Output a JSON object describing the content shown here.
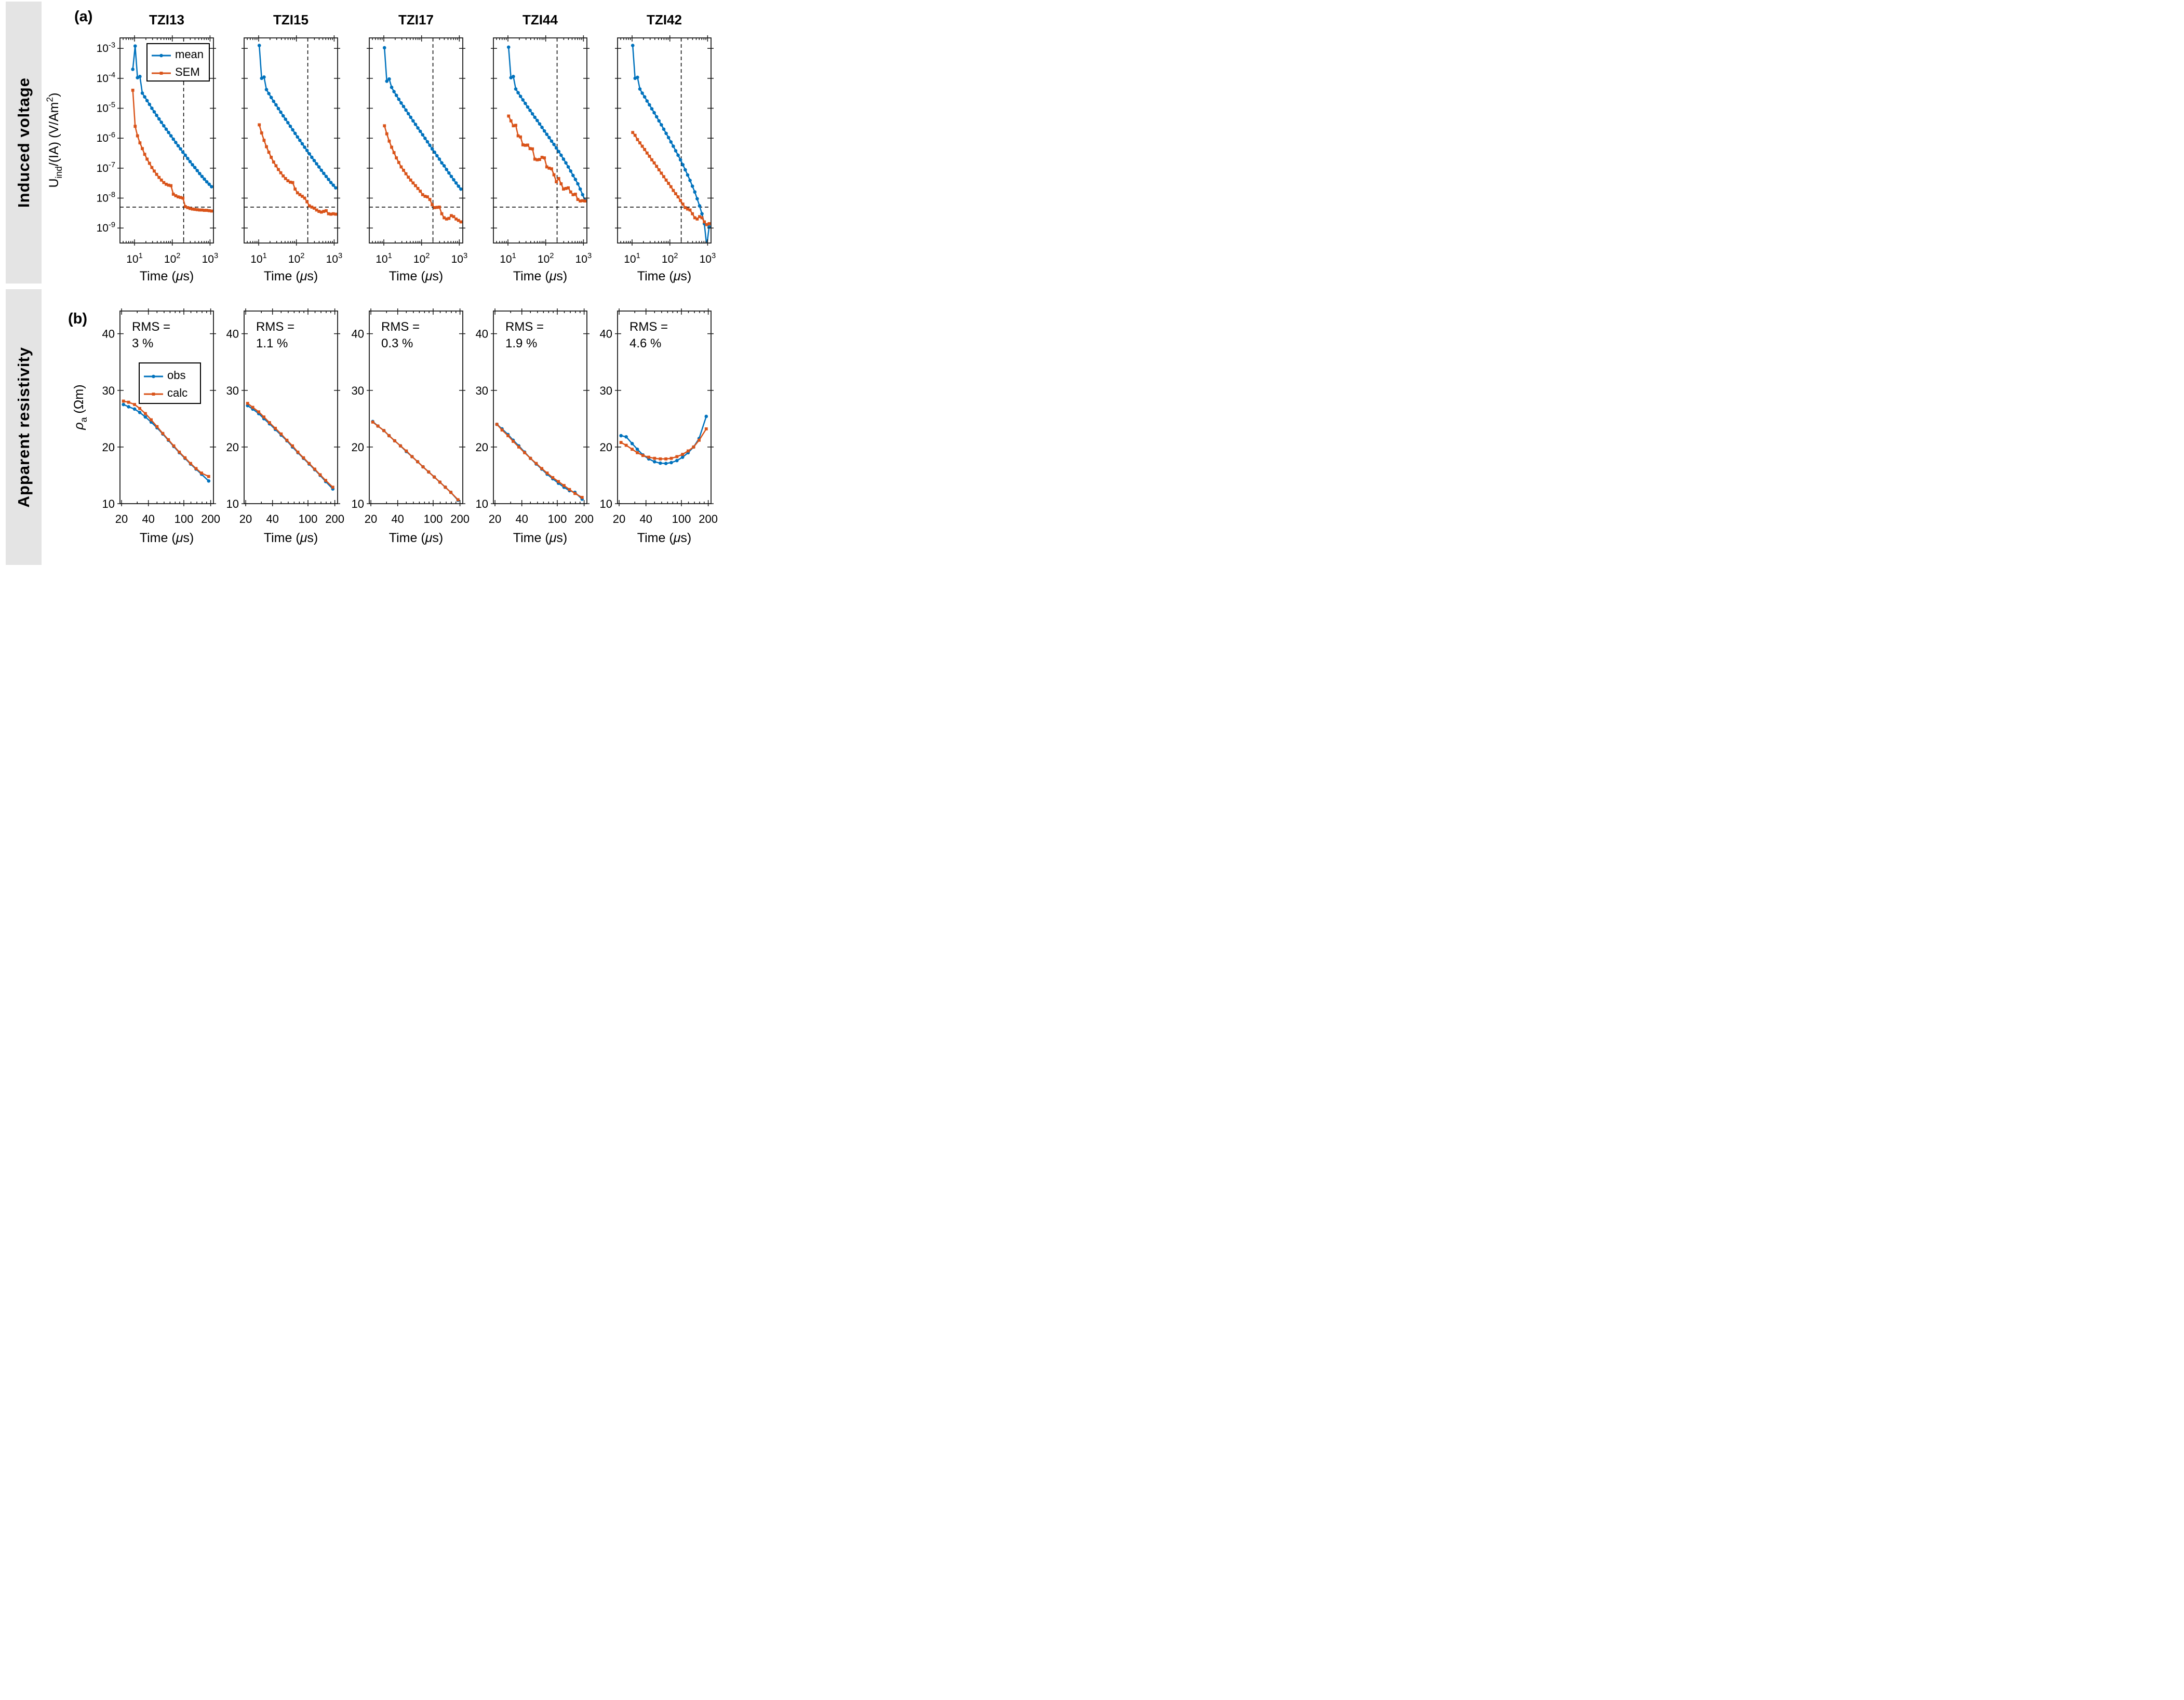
{
  "sidebars": {
    "a": "Induced voltage",
    "b": "Apparent resistivity"
  },
  "panel_labels": {
    "a": "(a)",
    "b": "(b)"
  },
  "colors": {
    "blue": "#0072BD",
    "orange": "#D95319",
    "axis": "#1a1a1a",
    "guide": "#000000",
    "sidebar_bg": "#E4E4E4"
  },
  "chart_data": [
    {
      "id": "induced-voltage",
      "type": "line",
      "x_scale": "log",
      "y_scale": "log",
      "xlabel": "Time (μs)",
      "xlabel_parts": [
        [
          "Time (",
          "n"
        ],
        [
          "μ",
          "i"
        ],
        [
          "s)",
          "n"
        ]
      ],
      "ylabel": "U_ind/(IA) (V/Am^2)",
      "ylabel_parts": [
        [
          "U",
          "n"
        ],
        [
          "ind",
          "s"
        ],
        [
          "/(IA) (V/Am",
          "n"
        ],
        [
          "2",
          "u"
        ],
        [
          ")",
          "n"
        ]
      ],
      "xlim": [
        4.1,
        1230
      ],
      "ylim": [
        3.2e-10,
        0.0022
      ],
      "x_major_ticks": [
        10,
        100,
        1000
      ],
      "y_major_tick_exponents": [
        -3,
        -4,
        -5,
        -6,
        -7,
        -8,
        -9
      ],
      "x_minor_ticks": [
        5,
        6,
        7,
        8,
        9,
        20,
        30,
        40,
        50,
        60,
        70,
        80,
        90,
        200,
        300,
        400,
        500,
        600,
        700,
        800,
        900
      ],
      "dashed_guides": {
        "x": 200,
        "y": 5e-09
      },
      "legend": {
        "items": [
          {
            "label": "mean",
            "color": "#0072BD",
            "marker": "circle"
          },
          {
            "label": "SEM",
            "color": "#D95319",
            "marker": "square"
          }
        ]
      },
      "times_34": [
        9.0,
        10.4,
        12.0,
        13.9,
        16.1,
        18.6,
        21.5,
        24.9,
        28.8,
        33.3,
        38.5,
        44.6,
        51.5,
        59.6,
        69.0,
        79.8,
        92.3,
        106.8,
        123.5,
        142.9,
        165.3,
        191.2,
        221.2,
        255.9,
        296.0,
        342.4,
        396.1,
        458.2,
        530.0,
        613.1,
        709.2,
        820.4,
        949.0,
        1097.7
      ],
      "times_33": [
        10.4,
        12.0,
        13.9,
        16.1,
        18.6,
        21.5,
        24.9,
        28.8,
        33.3,
        38.5,
        44.6,
        51.5,
        59.6,
        69.0,
        79.8,
        92.3,
        106.8,
        123.5,
        142.9,
        165.3,
        191.2,
        221.2,
        255.9,
        296.0,
        342.4,
        396.1,
        458.2,
        530.0,
        613.1,
        709.2,
        820.4,
        949.0,
        1097.7
      ],
      "subplots": [
        {
          "title": "TZI13",
          "series": [
            {
              "name": "mean",
              "times": "times_34",
              "values": [
                0.0002,
                0.0012,
                0.000105,
                0.000115,
                3.2e-05,
                2.4e-05,
                1.8e-05,
                1.35e-05,
                1e-05,
                7.6e-06,
                5.8e-06,
                4.4e-06,
                3.4e-06,
                2.6e-06,
                2e-06,
                1.55e-06,
                1.2e-06,
                9.3e-07,
                7.2e-07,
                5.6e-07,
                4.4e-07,
                3.4e-07,
                2.7e-07,
                2.1e-07,
                1.65e-07,
                1.3e-07,
                1.05e-07,
                8.3e-08,
                6.6e-08,
                5.3e-08,
                4.3e-08,
                3.5e-08,
                2.9e-08,
                2.4e-08
              ]
            },
            {
              "name": "SEM",
              "times": "times_34",
              "values": [
                4e-05,
                2.5e-06,
                1.2e-06,
                7e-07,
                4.5e-07,
                2.9e-07,
                2e-07,
                1.45e-07,
                1.05e-07,
                8e-08,
                6.2e-08,
                4.9e-08,
                4e-08,
                3.3e-08,
                2.9e-08,
                2.7e-08,
                2.6e-08,
                1.35e-08,
                1.2e-08,
                1.1e-08,
                1.05e-08,
                1e-08,
                5.2e-09,
                4.8e-09,
                4.5e-09,
                4.3e-09,
                4.2e-09,
                4.1e-09,
                4e-09,
                4e-09,
                3.9e-09,
                3.9e-09,
                3.8e-09,
                3.7e-09
              ]
            }
          ]
        },
        {
          "title": "TZI15",
          "series": [
            {
              "name": "mean",
              "times": "times_33",
              "values": [
                0.00125,
                0.0001,
                0.00011,
                4.2e-05,
                3.1e-05,
                2.3e-05,
                1.7e-05,
                1.3e-05,
                9.8e-06,
                7.4e-06,
                5.6e-06,
                4.3e-06,
                3.3e-06,
                2.5e-06,
                1.9e-06,
                1.45e-06,
                1.1e-06,
                8.5e-07,
                6.5e-07,
                5e-07,
                3.9e-07,
                3e-07,
                2.3e-07,
                1.8e-07,
                1.4e-07,
                1.1e-07,
                8.5e-08,
                6.7e-08,
                5.3e-08,
                4.2e-08,
                3.3e-08,
                2.7e-08,
                2.2e-08
              ]
            },
            {
              "name": "SEM",
              "times": "times_33",
              "values": [
                2.8e-06,
                1.5e-06,
                8.5e-07,
                5.2e-07,
                3.4e-07,
                2.3e-07,
                1.6e-07,
                1.2e-07,
                9e-08,
                7e-08,
                5.5e-08,
                4.5e-08,
                3.8e-08,
                3.4e-08,
                3.3e-08,
                2e-08,
                1.5e-08,
                1.3e-08,
                1.15e-08,
                1e-08,
                7.5e-09,
                5.5e-09,
                5e-09,
                4.6e-09,
                4e-09,
                3.6e-09,
                3.4e-09,
                3.6e-09,
                3.8e-09,
                3e-09,
                2.9e-09,
                3e-09,
                2.9e-09
              ]
            }
          ]
        },
        {
          "title": "TZI17",
          "series": [
            {
              "name": "mean",
              "times": "times_33",
              "values": [
                0.00105,
                8e-05,
                9.5e-05,
                5e-05,
                3.6e-05,
                2.7e-05,
                2e-05,
                1.5e-05,
                1.15e-05,
                8.7e-06,
                6.6e-06,
                5e-06,
                3.8e-06,
                2.9e-06,
                2.2e-06,
                1.7e-06,
                1.3e-06,
                9.9e-07,
                7.6e-07,
                5.8e-07,
                4.4e-07,
                3.4e-07,
                2.6e-07,
                2e-07,
                1.5e-07,
                1.2e-07,
                9e-08,
                6.9e-08,
                5.3e-08,
                4.1e-08,
                3.2e-08,
                2.5e-08,
                2e-08
              ]
            },
            {
              "name": "SEM",
              "times": "times_33",
              "values": [
                2.6e-06,
                1.4e-06,
                8e-07,
                5e-07,
                3.3e-07,
                2.2e-07,
                1.55e-07,
                1.1e-07,
                8.5e-08,
                6.5e-08,
                5e-08,
                4e-08,
                3.2e-08,
                2.6e-08,
                2.1e-08,
                1.7e-08,
                1.3e-08,
                1.15e-08,
                1.1e-08,
                9e-09,
                6e-09,
                4.8e-09,
                4.9e-09,
                5e-09,
                3e-09,
                2.2e-09,
                2e-09,
                2.1e-09,
                2.6e-09,
                2.4e-09,
                2e-09,
                1.8e-09,
                1.6e-09
              ]
            }
          ]
        },
        {
          "title": "TZI44",
          "series": [
            {
              "name": "mean",
              "times": "times_33",
              "values": [
                0.0011,
                0.000105,
                0.000115,
                4.4e-05,
                3.3e-05,
                2.5e-05,
                1.9e-05,
                1.45e-05,
                1.1e-05,
                8.5e-06,
                6.5e-06,
                5e-06,
                3.9e-06,
                3e-06,
                2.3e-06,
                1.75e-06,
                1.35e-06,
                1.05e-06,
                8e-07,
                6.2e-07,
                4.7e-07,
                3.6e-07,
                2.7e-07,
                2e-07,
                1.5e-07,
                1.1e-07,
                8e-08,
                5.7e-08,
                4.2e-08,
                3e-08,
                2e-08,
                1.3e-08,
                8.5e-09
              ]
            },
            {
              "name": "SEM",
              "times": "times_33",
              "values": [
                5.5e-06,
                3.8e-06,
                2.6e-06,
                2.7e-06,
                1.2e-06,
                1.1e-06,
                6e-07,
                5.8e-07,
                5.9e-07,
                4.5e-07,
                4.4e-07,
                2e-07,
                1.9e-07,
                1.95e-07,
                2.3e-07,
                2.2e-07,
                1.1e-07,
                1e-07,
                9.5e-08,
                6e-08,
                3.5e-08,
                4.5e-08,
                3e-08,
                2e-08,
                2.1e-08,
                2.2e-08,
                1.6e-08,
                1.3e-08,
                1.35e-08,
                9e-09,
                8e-09,
                8.2e-09,
                8e-09
              ]
            }
          ]
        },
        {
          "title": "TZI42",
          "series": [
            {
              "name": "mean",
              "times": "times_33",
              "values": [
                0.00125,
                0.0001,
                0.000108,
                4.4e-05,
                3.2e-05,
                2.4e-05,
                1.75e-05,
                1.3e-05,
                9.6e-06,
                7.1e-06,
                5.2e-06,
                3.8e-06,
                2.8e-06,
                2e-06,
                1.45e-06,
                1.05e-06,
                7.5e-07,
                5.4e-07,
                3.8e-07,
                2.7e-07,
                1.9e-07,
                1.3e-07,
                8.8e-08,
                5.9e-08,
                3.9e-08,
                2.5e-08,
                1.6e-08,
                9.5e-09,
                5.5e-09,
                3e-09,
                1.4e-09,
                2.5e-10,
                1.1e-09
              ]
            },
            {
              "name": "SEM",
              "times": "times_33",
              "values": [
                1.55e-06,
                1.25e-06,
                9e-07,
                7e-07,
                5.4e-07,
                4.2e-07,
                3.2e-07,
                2.5e-07,
                1.9e-07,
                1.5e-07,
                1.15e-07,
                8.8e-08,
                6.8e-08,
                5.2e-08,
                4e-08,
                3.1e-08,
                2.4e-08,
                1.8e-08,
                1.4e-08,
                1.1e-08,
                8.3e-09,
                6.3e-09,
                4.8e-09,
                4.3e-09,
                4e-09,
                3e-09,
                2.2e-09,
                2e-09,
                2.4e-09,
                2.2e-09,
                1.6e-09,
                1.3e-09,
                1.4e-09
              ]
            }
          ]
        }
      ]
    },
    {
      "id": "apparent-resistivity",
      "type": "line",
      "x_scale": "log",
      "y_scale": "linear",
      "xlabel": "Time (μs)",
      "xlabel_parts": [
        [
          "Time (",
          "n"
        ],
        [
          "μ",
          "i"
        ],
        [
          "s)",
          "n"
        ]
      ],
      "ylabel": "ρ_a (Ωm)",
      "ylabel_parts": [
        [
          "ρ",
          "i"
        ],
        [
          "a",
          "s"
        ],
        [
          " (Ωm)",
          "n"
        ]
      ],
      "xlim": [
        19.2,
        215
      ],
      "ylim": [
        10,
        44
      ],
      "x_major_ticks": [
        20,
        40,
        100,
        200
      ],
      "y_major_ticks": [
        10,
        20,
        30,
        40
      ],
      "x_minor_ticks": [
        30,
        50,
        60,
        70,
        80,
        90,
        120,
        140,
        160,
        180
      ],
      "legend": {
        "items": [
          {
            "label": "obs",
            "color": "#0072BD",
            "marker": "circle"
          },
          {
            "label": "calc",
            "color": "#D95319",
            "marker": "square"
          }
        ]
      },
      "times": [
        21,
        24,
        28,
        32,
        37,
        43,
        50,
        58,
        67,
        77,
        89,
        103,
        119,
        137,
        158,
        190
      ],
      "subplots": [
        {
          "title": "TZI13",
          "rms_label": "RMS =",
          "rms_value": "3 %",
          "series": [
            {
              "name": "obs",
              "values": [
                27.5,
                27.1,
                26.7,
                26.1,
                25.3,
                24.4,
                23.4,
                22.3,
                21.2,
                20.1,
                19.0,
                18.0,
                17.0,
                16.1,
                15.2,
                14.0
              ]
            },
            {
              "name": "calc",
              "values": [
                28.1,
                27.9,
                27.5,
                26.8,
                25.9,
                24.8,
                23.6,
                22.4,
                21.3,
                20.2,
                19.1,
                18.1,
                17.1,
                16.2,
                15.4,
                14.8
              ]
            }
          ]
        },
        {
          "title": "TZI15",
          "rms_label": "RMS =",
          "rms_value": "1.1 %",
          "series": [
            {
              "name": "obs",
              "values": [
                27.3,
                26.7,
                25.9,
                25.0,
                24.1,
                23.1,
                22.1,
                21.1,
                20.0,
                19.0,
                18.0,
                17.0,
                16.0,
                15.0,
                13.9,
                12.6
              ]
            },
            {
              "name": "calc",
              "values": [
                27.7,
                27.0,
                26.2,
                25.3,
                24.3,
                23.3,
                22.3,
                21.2,
                20.2,
                19.1,
                18.1,
                17.1,
                16.1,
                15.1,
                14.1,
                12.9
              ]
            }
          ]
        },
        {
          "title": "TZI17",
          "rms_label": "RMS =",
          "rms_value": "0.3 %",
          "series": [
            {
              "name": "obs",
              "values": [
                24.5,
                23.7,
                22.9,
                22.0,
                21.1,
                20.2,
                19.2,
                18.3,
                17.4,
                16.5,
                15.6,
                14.7,
                13.8,
                12.9,
                12.0,
                10.6
              ]
            },
            {
              "name": "calc",
              "values": [
                24.4,
                23.7,
                22.9,
                22.0,
                21.1,
                20.2,
                19.3,
                18.3,
                17.4,
                16.5,
                15.6,
                14.7,
                13.8,
                12.9,
                12.0,
                10.7
              ]
            }
          ]
        },
        {
          "title": "TZI44",
          "rms_label": "RMS =",
          "rms_value": "1.9 %",
          "series": [
            {
              "name": "obs",
              "values": [
                24.0,
                23.2,
                22.2,
                21.2,
                20.2,
                19.1,
                18.0,
                17.0,
                16.1,
                15.2,
                14.4,
                13.6,
                12.9,
                12.3,
                12.0,
                10.8
              ]
            },
            {
              "name": "calc",
              "values": [
                24.0,
                23.0,
                22.0,
                21.0,
                20.0,
                19.0,
                18.0,
                17.1,
                16.2,
                15.4,
                14.6,
                13.9,
                13.2,
                12.5,
                11.8,
                11.1
              ]
            }
          ]
        },
        {
          "title": "TZI42",
          "rms_label": "RMS =",
          "rms_value": "4.6 %",
          "series": [
            {
              "name": "obs",
              "values": [
                22.0,
                21.8,
                20.6,
                19.6,
                18.6,
                17.9,
                17.4,
                17.15,
                17.1,
                17.25,
                17.6,
                18.2,
                19.0,
                20.0,
                21.5,
                25.4
              ]
            },
            {
              "name": "calc",
              "values": [
                20.8,
                20.3,
                19.6,
                19.0,
                18.5,
                18.2,
                18.0,
                17.9,
                17.9,
                18.0,
                18.3,
                18.7,
                19.3,
                20.0,
                21.2,
                23.2
              ]
            }
          ]
        }
      ]
    }
  ]
}
